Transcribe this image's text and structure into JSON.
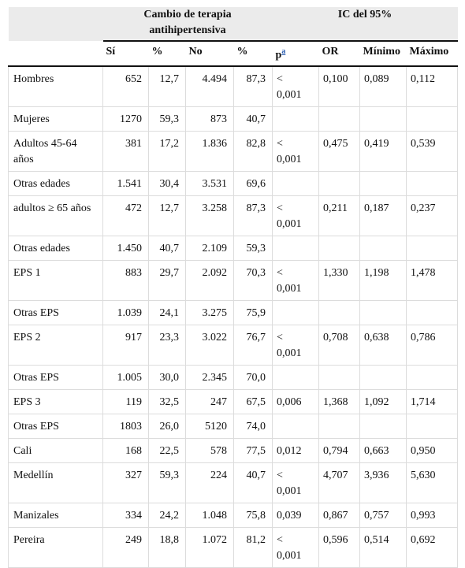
{
  "header": {
    "group1": "Cambio de terapia antihipertensiva",
    "group2": "IC del 95%",
    "columns": [
      "Sí",
      "%",
      "No",
      "%",
      {
        "text": "p",
        "sup": "a"
      },
      "OR",
      "Mínimo",
      "Máximo"
    ]
  },
  "rows": [
    [
      "Hombres",
      "652",
      "12,7",
      "4.494",
      "87,3",
      "< 0,001",
      "0,100",
      "0,089",
      "0,112"
    ],
    [
      "Mujeres",
      "1270",
      "59,3",
      "873",
      "40,7",
      null,
      null,
      null,
      null
    ],
    [
      "Adultos 45-64 años",
      "381",
      "17,2",
      "1.836",
      "82,8",
      "< 0,001",
      "0,475",
      "0,419",
      "0,539"
    ],
    [
      "Otras edades",
      "1.541",
      "30,4",
      "3.531",
      "69,6",
      null,
      null,
      null,
      null
    ],
    [
      "adultos ≥ 65 años",
      "472",
      "12,7",
      "3.258",
      "87,3",
      "< 0,001",
      "0,211",
      "0,187",
      "0,237"
    ],
    [
      "Otras edades",
      "1.450",
      "40,7",
      "2.109",
      "59,3",
      null,
      null,
      null,
      null
    ],
    [
      "EPS 1",
      "883",
      "29,7",
      "2.092",
      "70,3",
      "< 0,001",
      "1,330",
      "1,198",
      "1,478"
    ],
    [
      "Otras EPS",
      "1.039",
      "24,1",
      "3.275",
      "75,9",
      null,
      null,
      null,
      null
    ],
    [
      "EPS 2",
      "917",
      "23,3",
      "3.022",
      "76,7",
      "< 0,001",
      "0,708",
      "0,638",
      "0,786"
    ],
    [
      "Otras EPS",
      "1.005",
      "30,0",
      "2.345",
      "70,0",
      null,
      null,
      null,
      null
    ],
    [
      "EPS 3",
      "119",
      "32,5",
      "247",
      "67,5",
      "0,006",
      "1,368",
      "1,092",
      "1,714"
    ],
    [
      "Otras EPS",
      "1803",
      "26,0",
      "5120",
      "74,0",
      null,
      null,
      null,
      null
    ],
    [
      "Cali",
      "168",
      "22,5",
      "578",
      "77,5",
      "0,012",
      "0,794",
      "0,663",
      "0,950"
    ],
    [
      "Medellín",
      "327",
      "59,3",
      "224",
      "40,7",
      "< 0,001",
      "4,707",
      "3,936",
      "5,630"
    ],
    [
      "Manizales",
      "334",
      "24,2",
      "1.048",
      "75,8",
      "0,039",
      "0,867",
      "0,757",
      "0,993"
    ],
    [
      "Pereira",
      "249",
      "18,8",
      "1.072",
      "81,2",
      "< 0,001",
      "0,596",
      "0,514",
      "0,692"
    ]
  ]
}
